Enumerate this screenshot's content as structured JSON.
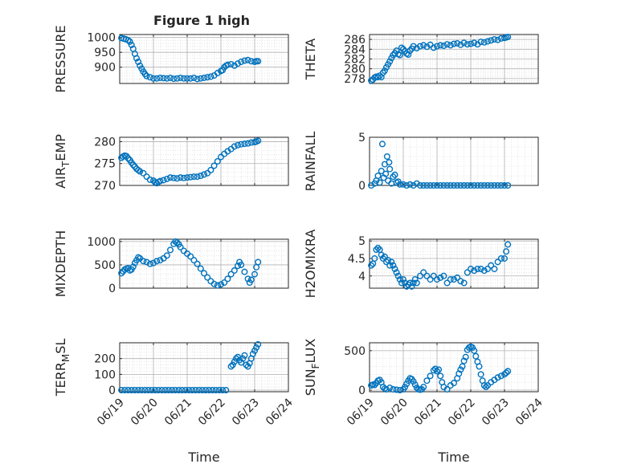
{
  "figure": {
    "title": "Figure 1 high"
  },
  "colors": {
    "marker": "#0072BD",
    "axis": "#262626",
    "grid": "#b0b0b0",
    "minor_grid": "#d4d4d4"
  },
  "chart_data": [
    {
      "type": "scatter",
      "ylabel": "PRESSURE",
      "title": "Figure 1 high",
      "xlabel": "",
      "xlim": [
        "06/19",
        "06/24"
      ],
      "ylim": [
        845,
        1010
      ],
      "yticks": [
        900,
        950,
        1000
      ],
      "yticklabels": [
        "900",
        "950",
        "1000"
      ],
      "grid": true,
      "series": [
        {
          "x_days": [
            0.05,
            0.12,
            0.18,
            0.25,
            0.3,
            0.35,
            0.4,
            0.45,
            0.5,
            0.55,
            0.6,
            0.65,
            0.7,
            0.75,
            0.8,
            0.9,
            1.0,
            1.1,
            1.2,
            1.3,
            1.4,
            1.5,
            1.6,
            1.7,
            1.8,
            1.9,
            2.0,
            2.1,
            2.2,
            2.3,
            2.4,
            2.5,
            2.6,
            2.7,
            2.8,
            2.9,
            3.0,
            3.05,
            3.1,
            3.15,
            3.2,
            3.3,
            3.4,
            3.5,
            3.6,
            3.7,
            3.8,
            3.9,
            4.0,
            4.05,
            4.1
          ],
          "y": [
            998,
            996,
            994,
            991,
            986,
            975,
            962,
            945,
            930,
            918,
            905,
            895,
            885,
            877,
            870,
            866,
            862,
            862,
            864,
            863,
            862,
            864,
            861,
            862,
            864,
            862,
            862,
            862,
            864,
            860,
            862,
            864,
            866,
            868,
            872,
            880,
            887,
            890,
            900,
            905,
            908,
            910,
            905,
            912,
            918,
            922,
            924,
            920,
            918,
            920,
            920
          ]
        }
      ]
    },
    {
      "type": "scatter",
      "ylabel": "THETA",
      "xlabel": "",
      "xlim": [
        "06/19",
        "06/24"
      ],
      "ylim": [
        277,
        287
      ],
      "yticks": [
        278,
        280,
        282,
        284,
        286
      ],
      "yticklabels": [
        "278",
        "280",
        "282",
        "284",
        "286"
      ],
      "grid": true,
      "series": [
        {
          "x_days": [
            0.05,
            0.1,
            0.15,
            0.2,
            0.25,
            0.3,
            0.35,
            0.4,
            0.45,
            0.5,
            0.55,
            0.6,
            0.65,
            0.7,
            0.75,
            0.8,
            0.85,
            0.9,
            0.95,
            1.0,
            1.05,
            1.1,
            1.15,
            1.2,
            1.25,
            1.3,
            1.4,
            1.5,
            1.6,
            1.7,
            1.8,
            1.9,
            2.0,
            2.1,
            2.2,
            2.3,
            2.4,
            2.5,
            2.6,
            2.7,
            2.8,
            2.9,
            3.0,
            3.1,
            3.2,
            3.3,
            3.4,
            3.5,
            3.6,
            3.7,
            3.8,
            3.9,
            4.0,
            4.05,
            4.1
          ],
          "y": [
            277.6,
            277.8,
            278.2,
            278.4,
            278.3,
            278.6,
            278.3,
            279.2,
            279.6,
            280.3,
            280.9,
            281.5,
            282.2,
            282.8,
            283.2,
            283.7,
            283.0,
            282.8,
            284.3,
            284.0,
            283.6,
            283.1,
            282.9,
            283.7,
            284.1,
            284.6,
            284.2,
            284.6,
            284.8,
            284.5,
            284.9,
            284.3,
            284.6,
            284.8,
            284.7,
            285.0,
            284.8,
            285.1,
            285.2,
            284.9,
            285.3,
            285.0,
            285.1,
            285.3,
            285.0,
            285.5,
            285.4,
            285.6,
            285.8,
            286.0,
            285.9,
            286.2,
            286.3,
            286.4,
            286.5
          ]
        }
      ]
    },
    {
      "type": "scatter",
      "ylabel": "AIR_TEMP",
      "xlabel": "",
      "xlim": [
        "06/19",
        "06/24"
      ],
      "ylim": [
        270,
        281
      ],
      "yticks": [
        270,
        275,
        280
      ],
      "yticklabels": [
        "270",
        "275",
        "280"
      ],
      "grid": true,
      "series": [
        {
          "x_days": [
            0.05,
            0.1,
            0.15,
            0.2,
            0.25,
            0.3,
            0.35,
            0.4,
            0.45,
            0.5,
            0.55,
            0.6,
            0.7,
            0.8,
            0.9,
            1.0,
            1.05,
            1.1,
            1.15,
            1.2,
            1.3,
            1.4,
            1.5,
            1.6,
            1.7,
            1.8,
            1.9,
            2.0,
            2.1,
            2.2,
            2.3,
            2.4,
            2.5,
            2.6,
            2.7,
            2.8,
            2.9,
            3.0,
            3.1,
            3.2,
            3.3,
            3.4,
            3.5,
            3.6,
            3.7,
            3.8,
            3.9,
            4.0,
            4.05,
            4.1
          ],
          "y": [
            276.3,
            276.6,
            276.8,
            276.7,
            276.2,
            275.8,
            275.2,
            274.7,
            274.3,
            273.8,
            273.5,
            273.2,
            272.8,
            272.0,
            271.3,
            271.1,
            270.7,
            270.5,
            270.8,
            271.0,
            271.2,
            271.5,
            271.8,
            271.7,
            271.6,
            271.8,
            271.7,
            271.8,
            271.9,
            272.0,
            272.0,
            272.2,
            272.5,
            272.8,
            273.5,
            274.5,
            275.5,
            276.5,
            277.2,
            277.8,
            278.3,
            278.9,
            279.2,
            279.4,
            279.5,
            279.6,
            279.8,
            279.9,
            280.0,
            280.2
          ]
        }
      ]
    },
    {
      "type": "scatter",
      "ylabel": "RAINFALL",
      "xlabel": "",
      "xlim": [
        "06/19",
        "06/24"
      ],
      "ylim": [
        0,
        5
      ],
      "yticks": [
        0,
        5
      ],
      "yticklabels": [
        "0",
        "5"
      ],
      "grid": true,
      "series": [
        {
          "x_days": [
            0.05,
            0.15,
            0.2,
            0.25,
            0.3,
            0.35,
            0.38,
            0.42,
            0.45,
            0.48,
            0.52,
            0.55,
            0.58,
            0.6,
            0.65,
            0.7,
            0.75,
            0.8,
            0.85,
            0.9,
            1.0,
            1.1,
            1.2,
            1.3,
            1.4,
            1.5,
            1.6,
            1.7,
            1.8,
            1.9,
            2.0,
            2.1,
            2.2,
            2.3,
            2.4,
            2.5,
            2.6,
            2.7,
            2.8,
            2.9,
            3.0,
            3.1,
            3.2,
            3.3,
            3.4,
            3.5,
            3.6,
            3.7,
            3.8,
            3.9,
            4.0,
            4.1
          ],
          "y": [
            0.0,
            0.2,
            0.5,
            1.0,
            0.3,
            1.5,
            4.3,
            0.8,
            2.2,
            1.2,
            3.0,
            0.5,
            2.4,
            1.7,
            0.2,
            0.9,
            1.1,
            0.3,
            0.4,
            0.1,
            0.1,
            0.0,
            0.1,
            0.0,
            0.2,
            0.0,
            0.0,
            0.0,
            0.0,
            0.0,
            0.0,
            0.0,
            0.0,
            0.0,
            0.0,
            0.0,
            0.0,
            0.0,
            0.0,
            0.0,
            0.0,
            0.0,
            0.0,
            0.0,
            0.0,
            0.0,
            0.0,
            0.0,
            0.0,
            0.0,
            0.0,
            0.0
          ]
        }
      ]
    },
    {
      "type": "scatter",
      "ylabel": "MIXDEPTH",
      "xlabel": "",
      "xlim": [
        "06/19",
        "06/24"
      ],
      "ylim": [
        0,
        1050
      ],
      "yticks": [
        0,
        500,
        1000
      ],
      "yticklabels": [
        "0",
        "500",
        "1000"
      ],
      "grid": true,
      "series": [
        {
          "x_days": [
            0.05,
            0.1,
            0.15,
            0.2,
            0.25,
            0.3,
            0.35,
            0.4,
            0.45,
            0.5,
            0.55,
            0.6,
            0.7,
            0.8,
            0.9,
            1.0,
            1.1,
            1.2,
            1.3,
            1.4,
            1.5,
            1.6,
            1.65,
            1.7,
            1.75,
            1.8,
            1.9,
            2.0,
            2.1,
            2.2,
            2.3,
            2.4,
            2.5,
            2.6,
            2.7,
            2.8,
            2.9,
            3.0,
            3.1,
            3.2,
            3.3,
            3.4,
            3.5,
            3.55,
            3.6,
            3.7,
            3.8,
            3.85,
            3.9,
            4.0,
            4.05,
            4.1
          ],
          "y": [
            320,
            360,
            400,
            420,
            430,
            380,
            400,
            460,
            540,
            600,
            660,
            640,
            580,
            560,
            520,
            540,
            580,
            600,
            640,
            700,
            820,
            950,
            1000,
            980,
            940,
            880,
            800,
            740,
            680,
            600,
            520,
            420,
            320,
            230,
            150,
            90,
            60,
            80,
            120,
            200,
            300,
            380,
            480,
            560,
            500,
            350,
            200,
            120,
            180,
            300,
            450,
            560
          ]
        }
      ]
    },
    {
      "type": "scatter",
      "ylabel": "H2OMIXRA",
      "xlabel": "",
      "xlim": [
        "06/19",
        "06/24"
      ],
      "ylim": [
        3.65,
        5.05
      ],
      "yticks": [
        4,
        4.5,
        5
      ],
      "yticklabels": [
        "4",
        "4.5",
        "5"
      ],
      "grid": true,
      "series": [
        {
          "x_days": [
            0.05,
            0.1,
            0.15,
            0.2,
            0.25,
            0.3,
            0.35,
            0.4,
            0.45,
            0.5,
            0.55,
            0.6,
            0.65,
            0.7,
            0.75,
            0.8,
            0.85,
            0.9,
            0.95,
            1.0,
            1.05,
            1.1,
            1.15,
            1.2,
            1.25,
            1.3,
            1.35,
            1.4,
            1.5,
            1.6,
            1.7,
            1.8,
            1.9,
            2.0,
            2.1,
            2.2,
            2.3,
            2.4,
            2.5,
            2.6,
            2.7,
            2.8,
            2.9,
            3.0,
            3.1,
            3.2,
            3.3,
            3.4,
            3.5,
            3.6,
            3.7,
            3.8,
            3.9,
            4.0,
            4.05,
            4.1
          ],
          "y": [
            4.3,
            4.35,
            4.5,
            4.75,
            4.8,
            4.75,
            4.6,
            4.5,
            4.55,
            4.4,
            4.45,
            4.3,
            4.4,
            4.3,
            4.2,
            4.1,
            4.0,
            3.9,
            3.8,
            3.9,
            3.8,
            3.7,
            3.75,
            3.8,
            3.7,
            3.8,
            3.9,
            3.8,
            4.0,
            4.1,
            4.0,
            3.9,
            4.0,
            3.9,
            3.95,
            4.0,
            3.8,
            3.9,
            3.9,
            3.95,
            3.85,
            3.8,
            4.1,
            4.2,
            4.15,
            4.2,
            4.2,
            4.15,
            4.2,
            4.3,
            4.2,
            4.4,
            4.5,
            4.5,
            4.7,
            4.9
          ]
        }
      ]
    },
    {
      "type": "scatter",
      "ylabel": "TERR_MSL",
      "xlabel": "Time",
      "xlim": [
        "06/19",
        "06/24"
      ],
      "ylim": [
        -10,
        300
      ],
      "yticks": [
        0,
        100,
        200
      ],
      "yticklabels": [
        "0",
        "100",
        "200"
      ],
      "xticklabels": [
        "06/19",
        "06/20",
        "06/21",
        "06/22",
        "06/23",
        "06/24"
      ],
      "grid": true,
      "series": [
        {
          "x_days": [
            0.05,
            0.15,
            0.25,
            0.35,
            0.45,
            0.55,
            0.65,
            0.75,
            0.85,
            0.95,
            1.05,
            1.15,
            1.25,
            1.35,
            1.45,
            1.55,
            1.65,
            1.75,
            1.85,
            1.95,
            2.05,
            2.15,
            2.25,
            2.35,
            2.45,
            2.55,
            2.65,
            2.75,
            2.85,
            2.95,
            3.05,
            3.15,
            3.3,
            3.35,
            3.4,
            3.45,
            3.5,
            3.55,
            3.6,
            3.65,
            3.7,
            3.75,
            3.8,
            3.85,
            3.9,
            3.95,
            4.0,
            4.05,
            4.1
          ],
          "y": [
            0,
            0,
            0,
            0,
            0,
            0,
            0,
            0,
            0,
            0,
            0,
            0,
            0,
            0,
            0,
            0,
            0,
            0,
            0,
            0,
            0,
            0,
            0,
            0,
            0,
            0,
            0,
            0,
            0,
            0,
            0,
            0,
            150,
            160,
            180,
            200,
            210,
            190,
            175,
            200,
            220,
            160,
            150,
            170,
            200,
            230,
            250,
            270,
            290
          ]
        }
      ]
    },
    {
      "type": "scatter",
      "ylabel": "SUN_FLUX",
      "xlabel": "Time",
      "xlim": [
        "06/19",
        "06/24"
      ],
      "ylim": [
        -20,
        600
      ],
      "yticks": [
        0,
        500
      ],
      "yticklabels": [
        "0",
        "500"
      ],
      "xticklabels": [
        "06/19",
        "06/20",
        "06/21",
        "06/22",
        "06/23",
        "06/24"
      ],
      "grid": true,
      "series": [
        {
          "x_days": [
            0.05,
            0.1,
            0.15,
            0.2,
            0.25,
            0.3,
            0.35,
            0.4,
            0.45,
            0.5,
            0.6,
            0.7,
            0.8,
            0.9,
            1.0,
            1.05,
            1.1,
            1.15,
            1.2,
            1.25,
            1.3,
            1.35,
            1.4,
            1.45,
            1.5,
            1.55,
            1.6,
            1.7,
            1.8,
            1.9,
            1.95,
            2.0,
            2.05,
            2.1,
            2.15,
            2.2,
            2.3,
            2.4,
            2.5,
            2.6,
            2.65,
            2.7,
            2.75,
            2.8,
            2.85,
            2.9,
            2.95,
            3.0,
            3.05,
            3.1,
            3.15,
            3.2,
            3.25,
            3.3,
            3.35,
            3.4,
            3.45,
            3.5,
            3.6,
            3.7,
            3.8,
            3.9,
            4.0,
            4.05,
            4.1
          ],
          "y": [
            60,
            70,
            65,
            90,
            120,
            130,
            100,
            40,
            20,
            10,
            30,
            10,
            5,
            0,
            10,
            40,
            80,
            120,
            150,
            140,
            110,
            70,
            30,
            10,
            5,
            10,
            40,
            120,
            180,
            250,
            270,
            240,
            260,
            180,
            100,
            40,
            10,
            60,
            90,
            150,
            210,
            260,
            300,
            370,
            420,
            510,
            540,
            550,
            540,
            500,
            430,
            360,
            300,
            200,
            120,
            60,
            40,
            60,
            100,
            130,
            160,
            180,
            200,
            220,
            240
          ]
        }
      ]
    }
  ]
}
